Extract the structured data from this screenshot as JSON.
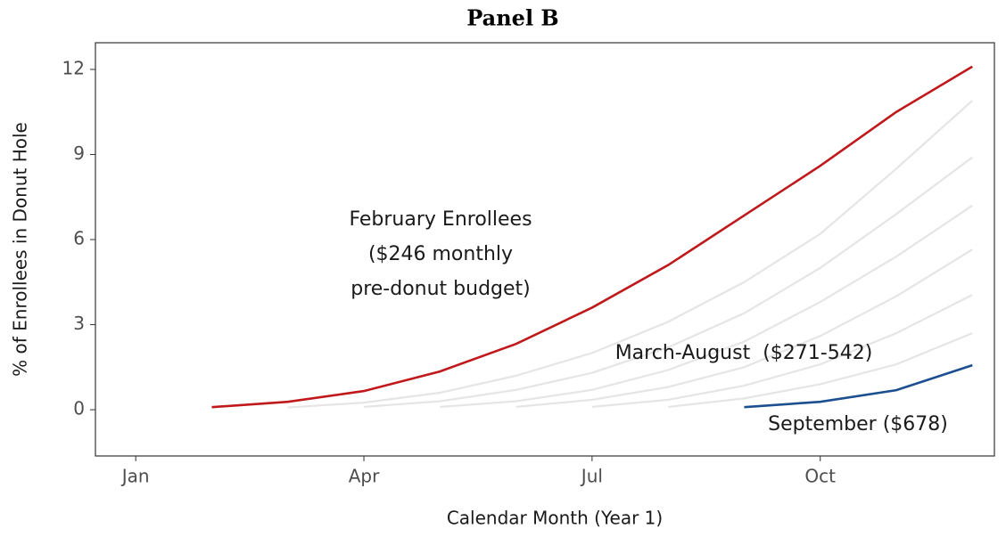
{
  "chart_data": {
    "type": "line",
    "title": "Panel B",
    "x_label": "Calendar Month (Year 1)",
    "y_label": "% of Enrollees in Donut Hole",
    "xlim": [
      0.47,
      12.29
    ],
    "ylim": [
      -1.63,
      12.94
    ],
    "xticks": [
      {
        "value": 1,
        "label": "Jan"
      },
      {
        "value": 4,
        "label": "Apr"
      },
      {
        "value": 7,
        "label": "Jul"
      },
      {
        "value": 10,
        "label": "Oct"
      }
    ],
    "yticks": [
      0,
      3,
      6,
      9,
      12
    ],
    "grid": false,
    "series": [
      {
        "color": "#e5e5e5",
        "x": [
          3,
          4,
          5,
          6,
          7,
          8,
          9,
          10,
          11,
          12
        ],
        "values": [
          0.08,
          0.25,
          0.6,
          1.2,
          2.0,
          3.1,
          4.5,
          6.2,
          8.5,
          10.9
        ]
      },
      {
        "color": "#e5e5e5",
        "x": [
          4,
          5,
          6,
          7,
          8,
          9,
          10,
          11,
          12
        ],
        "values": [
          0.1,
          0.3,
          0.7,
          1.3,
          2.2,
          3.4,
          5.0,
          6.9,
          8.9
        ]
      },
      {
        "color": "#e5e5e5",
        "x": [
          5,
          6,
          7,
          8,
          9,
          10,
          11,
          12
        ],
        "values": [
          0.1,
          0.3,
          0.7,
          1.4,
          2.4,
          3.8,
          5.4,
          7.2
        ]
      },
      {
        "color": "#e5e5e5",
        "x": [
          6,
          7,
          8,
          9,
          10,
          11,
          12
        ],
        "values": [
          0.1,
          0.35,
          0.8,
          1.5,
          2.6,
          4.0,
          5.65
        ]
      },
      {
        "color": "#e5e5e5",
        "x": [
          7,
          8,
          9,
          10,
          11,
          12
        ],
        "values": [
          0.1,
          0.35,
          0.85,
          1.6,
          2.7,
          4.05
        ]
      },
      {
        "color": "#e5e5e5",
        "x": [
          8,
          9,
          10,
          11,
          12
        ],
        "values": [
          0.1,
          0.4,
          0.9,
          1.6,
          2.7
        ]
      },
      {
        "color": "#c0191b",
        "x": [
          2,
          3,
          4,
          5,
          6,
          7,
          8,
          9,
          10,
          11,
          12
        ],
        "values": [
          0.09,
          0.28,
          0.66,
          1.35,
          2.32,
          3.6,
          5.1,
          6.85,
          8.6,
          10.5,
          12.1
        ]
      },
      {
        "color": "#1c4f8f",
        "x": [
          9,
          10,
          11,
          12
        ],
        "values": [
          0.09,
          0.28,
          0.69,
          1.57
        ]
      }
    ],
    "annotations": [
      [
        "February Enrollees",
        "($246 monthly",
        "pre-donut budget)"
      ],
      [
        "March-August  ($271-542)"
      ],
      [
        "September ($678)"
      ]
    ]
  }
}
